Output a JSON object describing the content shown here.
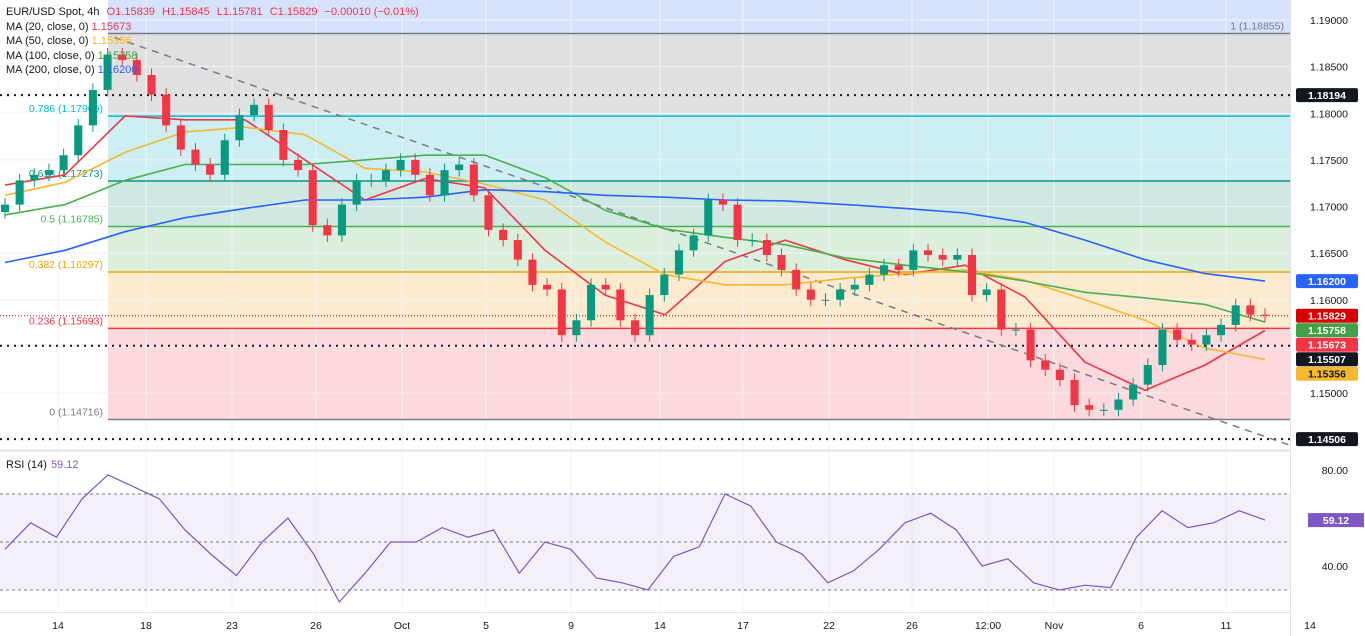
{
  "header": {
    "symbol": "EUR/USD Spot, 4h",
    "open": "O1.15839",
    "high": "H1.15845",
    "low": "L1.15781",
    "close": "C1.15829",
    "change": "−0.00010 (−0.01%)"
  },
  "indicators": [
    {
      "label": "MA (20, close, 0)",
      "value": "1.15673",
      "color": "#f23645"
    },
    {
      "label": "MA (50, close, 0)",
      "value": "1.15356",
      "color": "#f5b82e"
    },
    {
      "label": "MA (100, close, 0)",
      "value": "1.15758",
      "color": "#43a047"
    },
    {
      "label": "MA (200, close, 0)",
      "value": "1.16200",
      "color": "#2962ff"
    }
  ],
  "rsi": {
    "label": "RSI (14)",
    "value": "59.12",
    "color": "#7e57c2"
  },
  "chart_data": [
    {
      "type": "candlestick",
      "title": "EUR/USD Spot, 4h",
      "x_tick_labels": [
        "14",
        "18",
        "23",
        "26",
        "Oct",
        "5",
        "9",
        "14",
        "17",
        "22",
        "26",
        "12:00",
        "Nov",
        "6",
        "11",
        "14"
      ],
      "y_tick_labels": [
        "1.19000",
        "1.18500",
        "1.18000",
        "1.17500",
        "1.17000",
        "1.16500",
        "1.16000",
        "1.15000"
      ],
      "ylim": [
        1.1435,
        1.1921
      ],
      "grid": true,
      "close": [
        1.1702,
        1.1728,
        1.1734,
        1.1739,
        1.1755,
        1.1787,
        1.1825,
        1.1863,
        1.1857,
        1.1841,
        1.182,
        1.1787,
        1.1761,
        1.1745,
        1.1734,
        1.1771,
        1.1798,
        1.1809,
        1.1782,
        1.175,
        1.1739,
        1.168,
        1.1669,
        1.1702,
        1.1728,
        1.1728,
        1.1739,
        1.175,
        1.1734,
        1.1712,
        1.1739,
        1.1745,
        1.1712,
        1.1675,
        1.1664,
        1.1643,
        1.1616,
        1.1611,
        1.1562,
        1.1578,
        1.1616,
        1.1611,
        1.1578,
        1.1562,
        1.1605,
        1.1627,
        1.1653,
        1.1669,
        1.1707,
        1.1702,
        1.1664,
        1.1664,
        1.1648,
        1.1632,
        1.1611,
        1.16,
        1.16,
        1.1611,
        1.1616,
        1.1627,
        1.1637,
        1.1632,
        1.1653,
        1.1648,
        1.1643,
        1.1648,
        1.1605,
        1.1611,
        1.1568,
        1.1568,
        1.1535,
        1.1525,
        1.1514,
        1.1487,
        1.1482,
        1.1482,
        1.1493,
        1.1509,
        1.153,
        1.1568,
        1.1557,
        1.1552,
        1.1562,
        1.1573,
        1.1594,
        1.1584,
        1.1583
      ],
      "moving_averages": [
        {
          "name": "MA (20, close, 0)",
          "color": "#f23645",
          "values": [
            1.1723,
            1.1734,
            1.1797,
            1.1793,
            1.1793,
            1.175,
            1.1707,
            1.173,
            1.172,
            1.1653,
            1.1605,
            1.1584,
            1.1641,
            1.1664,
            1.1643,
            1.1627,
            1.1637,
            1.1603,
            1.1533,
            1.1503,
            1.153,
            1.1567
          ]
        },
        {
          "name": "MA (50, close, 0)",
          "color": "#f5b82e",
          "values": [
            1.1712,
            1.1726,
            1.1758,
            1.178,
            1.1785,
            1.1777,
            1.1741,
            1.1737,
            1.1724,
            1.1707,
            1.1662,
            1.1627,
            1.1616,
            1.1616,
            1.1623,
            1.1628,
            1.1632,
            1.1621,
            1.16,
            1.1578,
            1.1548,
            1.1536
          ]
        },
        {
          "name": "MA (100, close, 0)",
          "color": "#4caf50",
          "values": [
            1.1691,
            1.1702,
            1.1728,
            1.1745,
            1.1745,
            1.1745,
            1.175,
            1.1755,
            1.1755,
            1.1731,
            1.1696,
            1.1676,
            1.1667,
            1.1659,
            1.1645,
            1.1637,
            1.163,
            1.162,
            1.1608,
            1.1602,
            1.1595,
            1.1576
          ]
        },
        {
          "name": "MA (200, close, 0)",
          "color": "#2962ff",
          "values": [
            1.164,
            1.1653,
            1.1673,
            1.1688,
            1.1698,
            1.1707,
            1.1707,
            1.171,
            1.1718,
            1.1716,
            1.1712,
            1.171,
            1.1707,
            1.1706,
            1.1702,
            1.1698,
            1.1693,
            1.1683,
            1.1664,
            1.1643,
            1.1628,
            1.162
          ]
        }
      ],
      "fibonacci": [
        {
          "ratio": "1",
          "price": 1.18855,
          "label": "1 (1.18855)",
          "color": "#787b86",
          "zone": "#e0e0e0"
        },
        {
          "ratio": "0.786",
          "price": 1.17969,
          "label": "0.786 (1.17969)",
          "color": "#00bcd4",
          "zone": "#cdeff3"
        },
        {
          "ratio": "0.618",
          "price": 1.17273,
          "label": "0.618 (1.17273)",
          "color": "#089981",
          "zone": "#cfe9e2"
        },
        {
          "ratio": "0.5",
          "price": 1.16785,
          "label": "0.5 (1.16785)",
          "color": "#4caf50",
          "zone": "#dcefdc"
        },
        {
          "ratio": "0.382",
          "price": 1.16297,
          "label": "0.382 (1.16297)",
          "color": "#f0a30a",
          "zone": "#fdebd0"
        },
        {
          "ratio": "0.236",
          "price": 1.15693,
          "label": "0.236 (1.15693)",
          "color": "#f23645",
          "zone": "#fbd9dc"
        },
        {
          "ratio": "0",
          "price": 1.14716,
          "label": "0 (1.14716)",
          "color": "#787b86",
          "zone": null
        }
      ],
      "horizontal_levels": [
        1.18194,
        1.15507,
        1.14506
      ],
      "trendline": {
        "from": 1.1881,
        "to": 1.1444,
        "style": "dashed",
        "color": "#787b86"
      },
      "price_badges": [
        {
          "value": "1.18194",
          "price": 1.18194,
          "bg": "#131722",
          "fg": "#ffffff"
        },
        {
          "value": "1.16200",
          "price": 1.162,
          "bg": "#2962ff",
          "fg": "#ffffff"
        },
        {
          "value": "1.15829",
          "price": 1.15829,
          "bg": "#d50000",
          "fg": "#ffffff"
        },
        {
          "value": "1.15758",
          "price": 1.15758,
          "bg": "#43a047",
          "fg": "#ffffff"
        },
        {
          "value": "1.15673",
          "price": 1.15673,
          "bg": "#f23645",
          "fg": "#ffffff"
        },
        {
          "value": "1.15507",
          "price": 1.15507,
          "bg": "#131722",
          "fg": "#ffffff"
        },
        {
          "value": "1.15356",
          "price": 1.15356,
          "bg": "#f5b82e",
          "fg": "#131722"
        },
        {
          "value": "1.14506",
          "price": 1.14506,
          "bg": "#131722",
          "fg": "#ffffff"
        }
      ],
      "candle_colors": {
        "up": "#089981",
        "down": "#f23645"
      }
    },
    {
      "type": "line",
      "title": "RSI (14)",
      "y_tick_labels": [
        "80.00",
        "40.00"
      ],
      "ylim": [
        20,
        86
      ],
      "bands": [
        70,
        50,
        30
      ],
      "values": [
        47,
        58,
        52,
        68,
        78,
        73,
        68,
        55,
        45,
        36,
        50,
        60,
        45,
        25,
        37,
        50,
        50,
        56,
        52,
        55,
        37,
        50,
        47,
        35,
        33,
        30,
        44,
        48,
        70,
        65,
        50,
        45,
        33,
        38,
        47,
        58,
        62,
        55,
        40,
        43,
        33,
        30,
        32,
        31,
        52,
        63,
        56,
        58,
        63,
        59.12
      ],
      "last_value": "59.12",
      "color": "#7e57c2"
    }
  ]
}
